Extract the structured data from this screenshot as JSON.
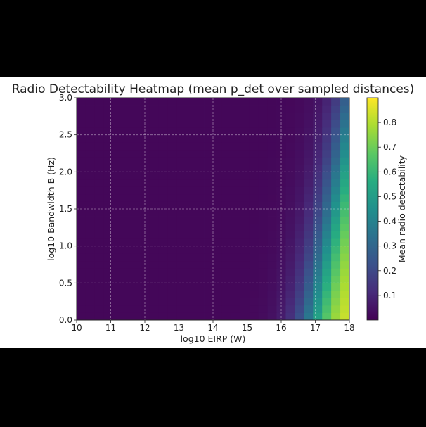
{
  "chart_data": {
    "type": "heatmap",
    "title": "Radio Detectability Heatmap (mean p_det over sampled distances)",
    "xlabel": "log10 EIRP (W)",
    "ylabel": "log10 Bandwidth B (Hz)",
    "colorbar_label": "Mean radio detectability",
    "xlim": [
      10,
      18
    ],
    "ylim": [
      0,
      3
    ],
    "x_ticks": [
      "10",
      "11",
      "12",
      "13",
      "14",
      "15",
      "16",
      "17",
      "18"
    ],
    "y_ticks": [
      "0.0",
      "0.5",
      "1.0",
      "1.5",
      "2.0",
      "2.5",
      "3.0"
    ],
    "colorbar_range": [
      0,
      0.9
    ],
    "colorbar_ticks": [
      "0.1",
      "0.2",
      "0.3",
      "0.4",
      "0.5",
      "0.6",
      "0.7",
      "0.8"
    ],
    "colormap": "viridis",
    "grid": true,
    "grid_nx": 30,
    "grid_ny": 30,
    "value_model": "mean p_det rises with log10 EIRP and falls with log10 Bandwidth; max ~0.9 at (18, 0)"
  }
}
